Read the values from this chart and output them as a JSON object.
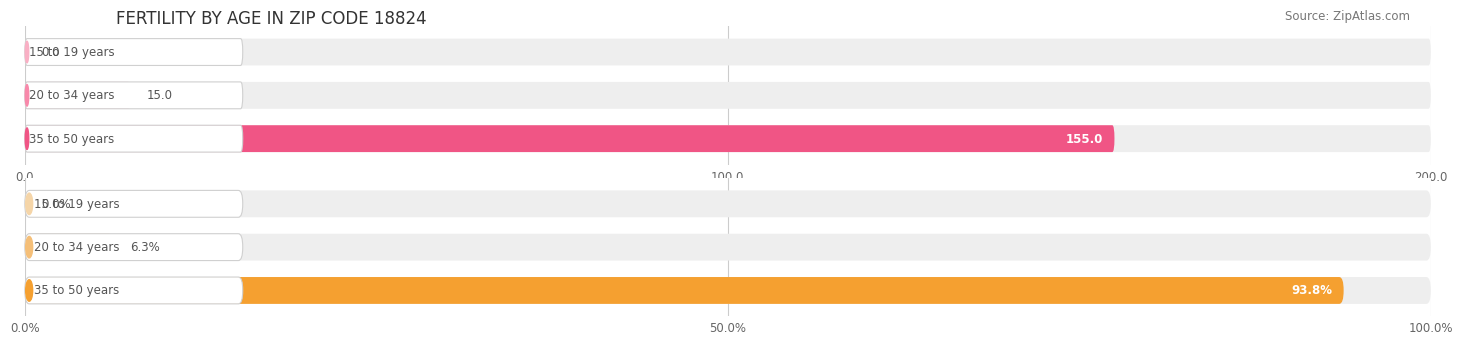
{
  "title": "FERTILITY BY AGE IN ZIP CODE 18824",
  "source": "Source: ZipAtlas.com",
  "top_chart": {
    "categories": [
      "15 to 19 years",
      "20 to 34 years",
      "35 to 50 years"
    ],
    "values": [
      0.0,
      15.0,
      155.0
    ],
    "xlim": [
      0,
      200
    ],
    "xticks": [
      0.0,
      100.0,
      200.0
    ],
    "xtick_labels": [
      "0.0",
      "100.0",
      "200.0"
    ],
    "bar_colors": [
      "#f9afc4",
      "#f888aa",
      "#f05585"
    ],
    "bar_bg_color": "#eeeeee",
    "label_text_color": "#555555"
  },
  "bottom_chart": {
    "categories": [
      "15 to 19 years",
      "20 to 34 years",
      "35 to 50 years"
    ],
    "values": [
      0.0,
      6.3,
      93.8
    ],
    "xlim": [
      0,
      100
    ],
    "xticks": [
      0.0,
      50.0,
      100.0
    ],
    "xtick_labels": [
      "0.0%",
      "50.0%",
      "100.0%"
    ],
    "bar_colors": [
      "#f5d5a8",
      "#f5bf78",
      "#f5a030"
    ],
    "bar_bg_color": "#eeeeee",
    "label_text_color": "#555555"
  },
  "bg_color": "#ffffff",
  "grid_color": "#cccccc",
  "title_fontsize": 12,
  "label_fontsize": 8.5,
  "tick_fontsize": 8.5,
  "source_fontsize": 8.5
}
